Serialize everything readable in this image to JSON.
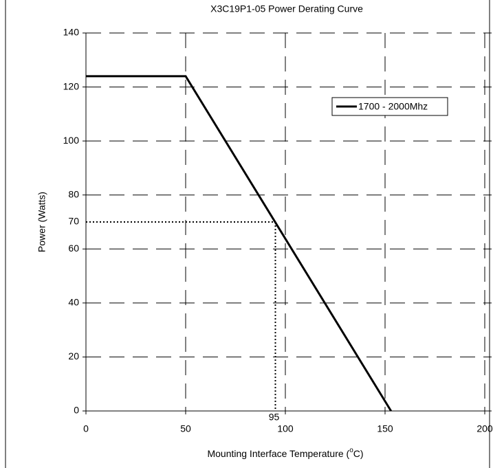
{
  "chart_data": {
    "type": "line",
    "title": "X3C19P1-05 Power Derating Curve",
    "x_label": "Mounting Interface Temperature (oC)",
    "y_label": "Power (Watts)",
    "x": [
      0,
      50,
      153
    ],
    "series": [
      {
        "name": "1700 - 2000Mhz",
        "color": "#000000",
        "values": [
          124,
          124,
          0
        ]
      }
    ],
    "xlim": [
      0,
      200
    ],
    "xticks": [
      0,
      50,
      100,
      150,
      200
    ],
    "ylim": [
      0,
      140
    ],
    "yticks": [
      0,
      20,
      40,
      60,
      80,
      100,
      120,
      140
    ],
    "grid": true,
    "legend": "upper right",
    "marker": {
      "x": 95,
      "y": 70
    }
  }
}
